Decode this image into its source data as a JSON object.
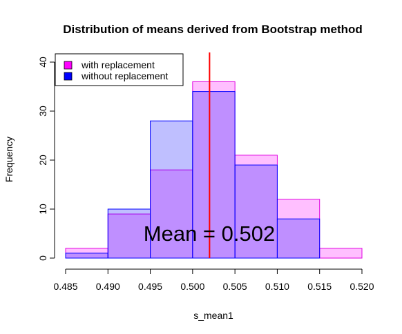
{
  "chart_data": {
    "type": "bar",
    "title": "Distribution of means derived from Bootstrap method",
    "xlabel": "s_mean1",
    "ylabel": "Frequency",
    "xlim": [
      0.485,
      0.52
    ],
    "ylim": [
      0,
      40
    ],
    "x_ticks": [
      "0.485",
      "0.490",
      "0.495",
      "0.500",
      "0.505",
      "0.510",
      "0.515",
      "0.520"
    ],
    "y_ticks": [
      "0",
      "10",
      "20",
      "30",
      "40"
    ],
    "bins": [
      [
        0.485,
        0.49
      ],
      [
        0.49,
        0.495
      ],
      [
        0.495,
        0.5
      ],
      [
        0.5,
        0.505
      ],
      [
        0.505,
        0.51
      ],
      [
        0.51,
        0.515
      ],
      [
        0.515,
        0.52
      ]
    ],
    "series": [
      {
        "name": "with replacement",
        "values": [
          2,
          9,
          18,
          36,
          21,
          12,
          2
        ],
        "fill": "#ff00ff",
        "stroke": "#e000e0"
      },
      {
        "name": "without replacement",
        "values": [
          1,
          10,
          28,
          34,
          19,
          8,
          0
        ],
        "fill": "#0000ff",
        "stroke": "#0000ff"
      }
    ],
    "mean_line": {
      "x": 0.502,
      "color": "#ff0000"
    },
    "annotation": "Mean = 0.502",
    "legend_position": "top-left",
    "grid": false
  }
}
